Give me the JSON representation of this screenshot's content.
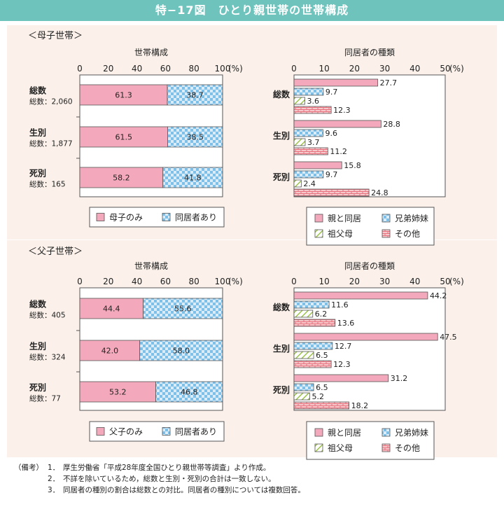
{
  "header": {
    "title": "特−17図　ひとり親世帯の世帯構成"
  },
  "chart_data": [
    {
      "type": "bar",
      "section": "＜母子世帯＞",
      "title": "世帯構成",
      "xlim": [
        0,
        100
      ],
      "ticks": [
        "0",
        "20",
        "40",
        "60",
        "80",
        "100"
      ],
      "unit": "(%)",
      "categories": [
        "総数",
        "生別",
        "死別"
      ],
      "sublabels": [
        "総数：2,060",
        "総数：1,877",
        "総数：165"
      ],
      "stacked": true,
      "series": [
        {
          "name": "母子のみ",
          "values": [
            61.3,
            61.5,
            58.2
          ],
          "labels": [
            "61.3",
            "61.5",
            "58.2"
          ],
          "color": "#f3a9bb",
          "pattern": "solid"
        },
        {
          "name": "同居者あり",
          "values": [
            38.7,
            38.5,
            41.8
          ],
          "labels": [
            "38.7",
            "38.5",
            "41.8"
          ],
          "color": "#7ec0e8",
          "pattern": "check"
        }
      ]
    },
    {
      "type": "bar",
      "section": "",
      "title": "同居者の種類",
      "xlim": [
        0,
        50
      ],
      "ticks": [
        "0",
        "10",
        "20",
        "30",
        "40",
        "50"
      ],
      "unit": "(%)",
      "categories": [
        "総数",
        "生別",
        "死別"
      ],
      "stacked": false,
      "legend_rows": [
        [
          "親と同居",
          "兄弟姉妹"
        ],
        [
          "祖父母",
          "その他"
        ]
      ],
      "series": [
        {
          "name": "親と同居",
          "values": [
            27.7,
            28.8,
            15.8
          ],
          "labels": [
            "27.7",
            "28.8",
            "15.8"
          ],
          "color": "#f3a9bb",
          "pattern": "solid"
        },
        {
          "name": "兄弟姉妹",
          "values": [
            9.7,
            9.6,
            9.7
          ],
          "labels": [
            "9.7",
            "9.6",
            "9.7"
          ],
          "color": "#7ec0e8",
          "pattern": "check"
        },
        {
          "name": "祖父母",
          "values": [
            3.6,
            3.7,
            2.4
          ],
          "labels": [
            "3.6",
            "3.7",
            "2.4"
          ],
          "color": "#9cc24a",
          "pattern": "diag"
        },
        {
          "name": "その他",
          "values": [
            12.3,
            11.2,
            24.8
          ],
          "labels": [
            "12.3",
            "11.2",
            "24.8"
          ],
          "color": "#e8737f",
          "pattern": "brick"
        }
      ]
    },
    {
      "type": "bar",
      "section": "＜父子世帯＞",
      "title": "世帯構成",
      "xlim": [
        0,
        100
      ],
      "ticks": [
        "0",
        "20",
        "40",
        "60",
        "80",
        "100"
      ],
      "unit": "(%)",
      "categories": [
        "総数",
        "生別",
        "死別"
      ],
      "sublabels": [
        "総数：405",
        "総数：324",
        "総数：77"
      ],
      "stacked": true,
      "series": [
        {
          "name": "父子のみ",
          "values": [
            44.4,
            42.0,
            53.2
          ],
          "labels": [
            "44.4",
            "42.0",
            "53.2"
          ],
          "color": "#f3a9bb",
          "pattern": "solid"
        },
        {
          "name": "同居者あり",
          "values": [
            55.6,
            58.0,
            46.8
          ],
          "labels": [
            "55.6",
            "58.0",
            "46.8"
          ],
          "color": "#7ec0e8",
          "pattern": "check"
        }
      ]
    },
    {
      "type": "bar",
      "section": "",
      "title": "同居者の種類",
      "xlim": [
        0,
        50
      ],
      "ticks": [
        "0",
        "10",
        "20",
        "30",
        "40",
        "50"
      ],
      "unit": "(%)",
      "categories": [
        "総数",
        "生別",
        "死別"
      ],
      "stacked": false,
      "legend_rows": [
        [
          "親と同居",
          "兄弟姉妹"
        ],
        [
          "祖父母",
          "その他"
        ]
      ],
      "series": [
        {
          "name": "親と同居",
          "values": [
            44.2,
            47.5,
            31.2
          ],
          "labels": [
            "44.2",
            "47.5",
            "31.2"
          ],
          "color": "#f3a9bb",
          "pattern": "solid"
        },
        {
          "name": "兄弟姉妹",
          "values": [
            11.6,
            12.7,
            6.5
          ],
          "labels": [
            "11.6",
            "12.7",
            "6.5"
          ],
          "color": "#7ec0e8",
          "pattern": "check"
        },
        {
          "name": "祖父母",
          "values": [
            6.2,
            6.5,
            5.2
          ],
          "labels": [
            "6.2",
            "6.5",
            "5.2"
          ],
          "color": "#9cc24a",
          "pattern": "diag"
        },
        {
          "name": "その他",
          "values": [
            13.6,
            12.3,
            18.2
          ],
          "labels": [
            "13.6",
            "12.3",
            "18.2"
          ],
          "color": "#e8737f",
          "pattern": "brick"
        }
      ]
    }
  ],
  "notes": {
    "head": "（備考）",
    "items": [
      {
        "num": "1．",
        "text": "厚生労働省「平成28年度全国ひとり親世帯等調査」より作成。"
      },
      {
        "num": "2．",
        "text": "不詳を除いているため，総数と生別・死別の合計は一致しない。"
      },
      {
        "num": "3．",
        "text": "同居者の種別の割合は総数との対比。同居者の種別については複数回答。"
      }
    ]
  }
}
